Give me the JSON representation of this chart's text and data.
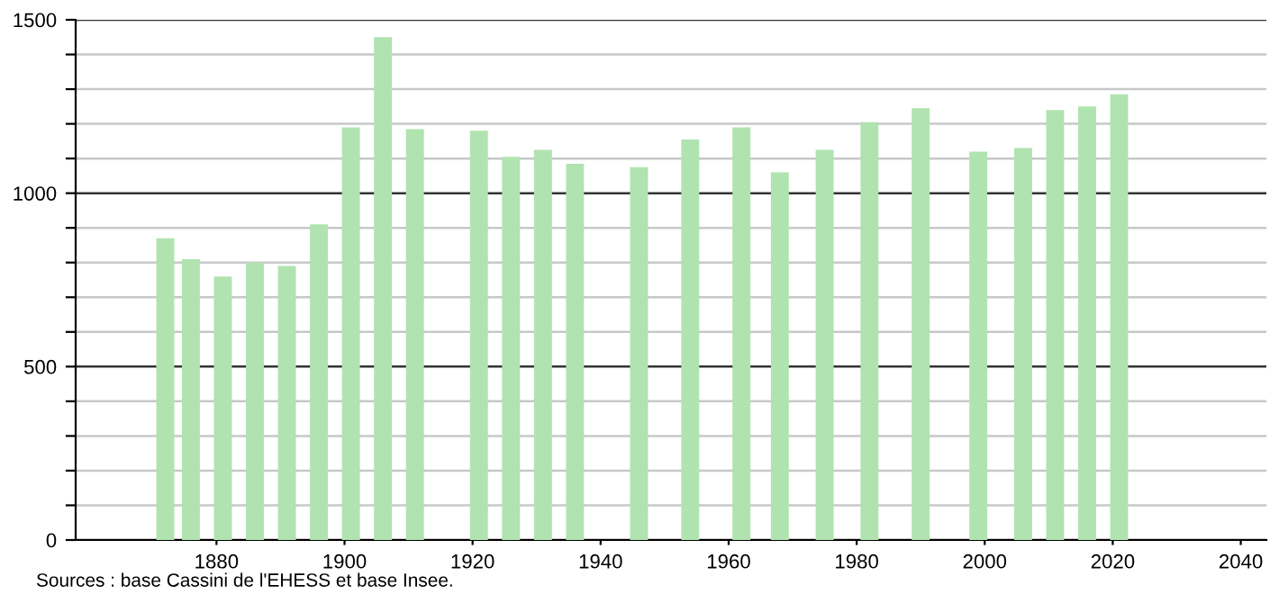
{
  "chart_data": {
    "type": "bar",
    "x": [
      1872,
      1876,
      1881,
      1886,
      1891,
      1896,
      1901,
      1906,
      1911,
      1921,
      1926,
      1931,
      1936,
      1946,
      1954,
      1962,
      1968,
      1975,
      1982,
      1990,
      1999,
      2006,
      2011,
      2016,
      2021
    ],
    "values": [
      870,
      810,
      760,
      800,
      790,
      910,
      1190,
      1450,
      1185,
      1180,
      1105,
      1125,
      1085,
      1075,
      1155,
      1190,
      1060,
      1125,
      1205,
      1245,
      1120,
      1130,
      1240,
      1250,
      1285
    ],
    "color": "#b0e3b0",
    "xlim": [
      1858,
      2044
    ],
    "xticks": [
      1880,
      1900,
      1920,
      1940,
      1960,
      1980,
      2000,
      2020,
      2040
    ],
    "ylim": [
      0,
      1500
    ],
    "yticks": [
      0,
      {
        "value": 100,
        "label": null
      },
      {
        "value": 200,
        "label": null
      },
      {
        "value": 300,
        "label": null
      },
      {
        "value": 400,
        "label": null
      },
      500,
      {
        "value": 600,
        "label": null
      },
      {
        "value": 700,
        "label": null
      },
      {
        "value": 800,
        "label": null
      },
      {
        "value": 900,
        "label": null
      },
      1000,
      {
        "value": 1100,
        "label": null
      },
      {
        "value": 1200,
        "label": null
      },
      {
        "value": 1300,
        "label": null
      },
      {
        "value": 1400,
        "label": null
      },
      1500
    ],
    "grid": "y",
    "annotations": [
      "Sources : base Cassini de l'EHESS et base Insee."
    ]
  }
}
